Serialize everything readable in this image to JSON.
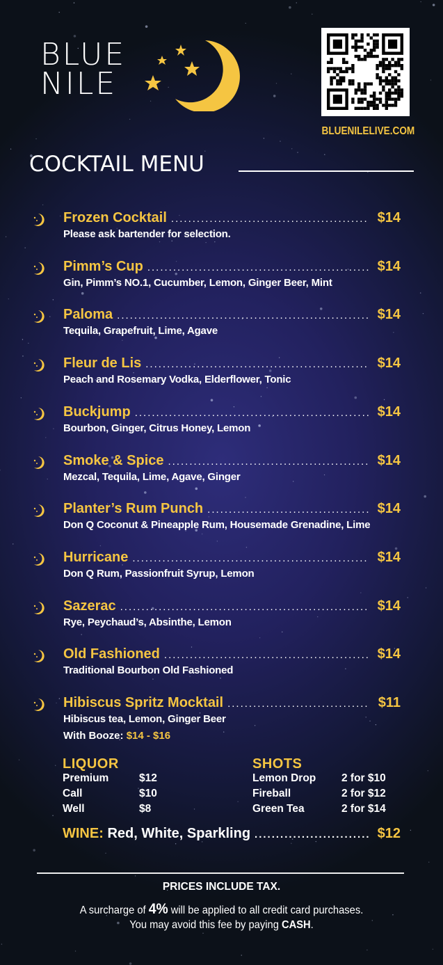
{
  "brand": {
    "logo_line1": "BLUE",
    "logo_line2": "NILE",
    "website": "BLUENILELIVE.COM"
  },
  "title": "COCKTAIL MENU",
  "colors": {
    "accent": "#f5c542",
    "background": "#22215e",
    "text": "#ffffff"
  },
  "cocktails": [
    {
      "name": "Frozen Cocktail",
      "description": "Please ask bartender for selection.",
      "price": "$14"
    },
    {
      "name": "Pimm’s Cup",
      "description": "Gin, Pimm’s NO.1, Cucumber, Lemon, Ginger Beer, Mint",
      "price": "$14"
    },
    {
      "name": "Paloma",
      "description": "Tequila, Grapefruit, Lime, Agave",
      "price": "$14"
    },
    {
      "name": "Fleur de Lis",
      "description": "Peach and Rosemary Vodka, Elderflower, Tonic",
      "price": "$14"
    },
    {
      "name": "Buckjump",
      "description": "Bourbon, Ginger, Citrus Honey, Lemon",
      "price": "$14"
    },
    {
      "name": "Smoke & Spice",
      "description": "Mezcal, Tequila, Lime, Agave, Ginger",
      "price": "$14"
    },
    {
      "name": "Planter’s  Rum Punch",
      "description": "Don Q Coconut & Pineapple Rum, Housemade Grenadine, Lime",
      "price": "$14"
    },
    {
      "name": "Hurricane",
      "description": "Don Q Rum, Passionfruit Syrup, Lemon",
      "price": "$14"
    },
    {
      "name": "Sazerac",
      "description": "Rye, Peychaud’s, Absinthe, Lemon",
      "price": "$14"
    },
    {
      "name": "Old Fashioned",
      "description": "Traditional Bourbon Old Fashioned",
      "price": "$14"
    },
    {
      "name": "Hibiscus Spritz Mocktail",
      "description": "Hibiscus tea, Lemon, Ginger Beer",
      "price": "$11"
    }
  ],
  "booze_option": {
    "label": "With Booze:",
    "price": "$14 - $16"
  },
  "liquor": {
    "heading": "LIQUOR",
    "rows": [
      {
        "name": "Premium",
        "price": "$12"
      },
      {
        "name": "Call",
        "price": "$10"
      },
      {
        "name": "Well",
        "price": "$8"
      }
    ]
  },
  "shots": {
    "heading": "SHOTS",
    "rows": [
      {
        "name": "Lemon Drop",
        "price": "2 for $10"
      },
      {
        "name": "Fireball",
        "price": "2 for $12"
      },
      {
        "name": "Green Tea",
        "price": "2 for $14"
      }
    ]
  },
  "wine": {
    "label": "WINE:",
    "types": "Red, White, Sparkling",
    "price": "$12"
  },
  "footer": {
    "tax_note": "PRICES INCLUDE TAX.",
    "surcharge_pre": "A surcharge of ",
    "surcharge_pct": "4%",
    "surcharge_post": " will be applied to all credit card purchases.",
    "cash_pre": "You may avoid this fee by paying ",
    "cash_word": "CASH",
    "cash_post": "."
  }
}
